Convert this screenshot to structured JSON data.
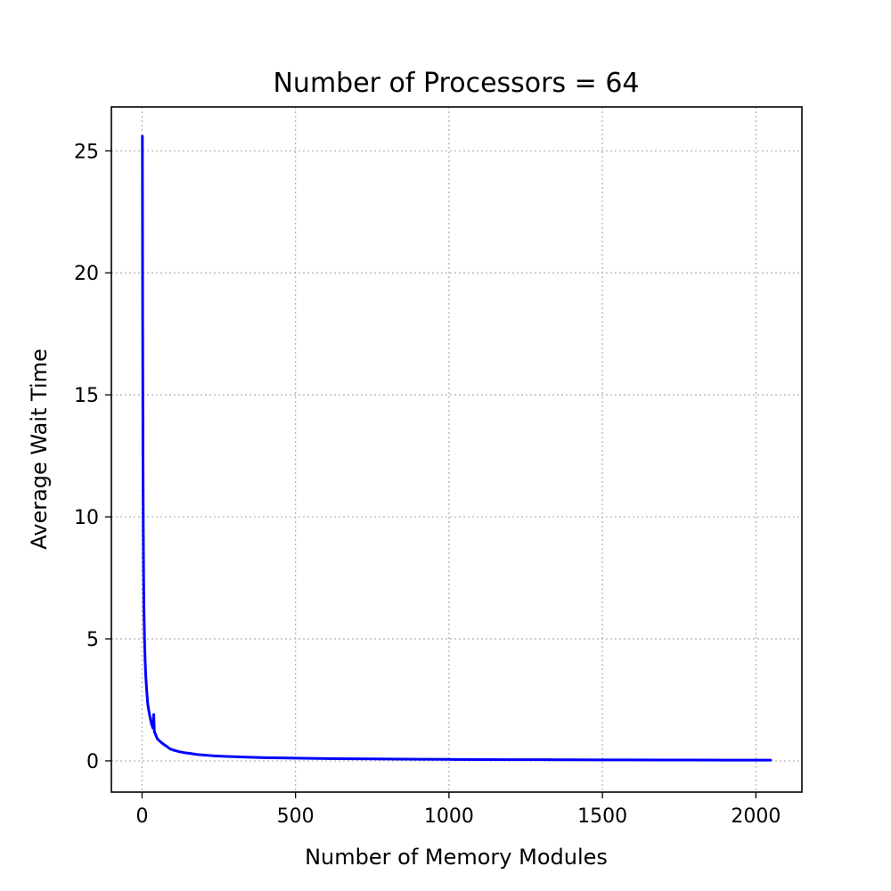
{
  "chart_data": {
    "type": "line",
    "title": "Number of Processors = 64",
    "xlabel": "Number of Memory Modules",
    "ylabel": "Average Wait Time",
    "xlim": [
      -100,
      2150
    ],
    "ylim": [
      -1.28,
      26.8
    ],
    "xticks": [
      0,
      500,
      1000,
      1500,
      2000
    ],
    "yticks": [
      0,
      5,
      10,
      15,
      20,
      25
    ],
    "grid": true,
    "series": [
      {
        "color": "#0000ff",
        "x": [
          1,
          2,
          3,
          4,
          5,
          6,
          8,
          10,
          12,
          15,
          18,
          20,
          25,
          30,
          35,
          38,
          40,
          45,
          50,
          60,
          70,
          80,
          90,
          100,
          120,
          140,
          160,
          180,
          200,
          230,
          260,
          300,
          350,
          400,
          450,
          500,
          600,
          700,
          800,
          900,
          1000,
          1100,
          1200,
          1300,
          1400,
          1500,
          1600,
          1700,
          1800,
          1900,
          2000,
          2048
        ],
        "y": [
          25.6,
          18.0,
          12.5,
          9.5,
          7.6,
          6.3,
          5.0,
          4.1,
          3.5,
          2.9,
          2.4,
          2.2,
          1.85,
          1.55,
          1.35,
          1.9,
          1.2,
          1.05,
          0.9,
          0.78,
          0.68,
          0.6,
          0.5,
          0.45,
          0.38,
          0.33,
          0.3,
          0.26,
          0.24,
          0.21,
          0.19,
          0.17,
          0.15,
          0.13,
          0.12,
          0.11,
          0.095,
          0.085,
          0.075,
          0.068,
          0.06,
          0.055,
          0.05,
          0.047,
          0.044,
          0.04,
          0.038,
          0.036,
          0.034,
          0.032,
          0.03,
          0.03
        ]
      }
    ]
  }
}
